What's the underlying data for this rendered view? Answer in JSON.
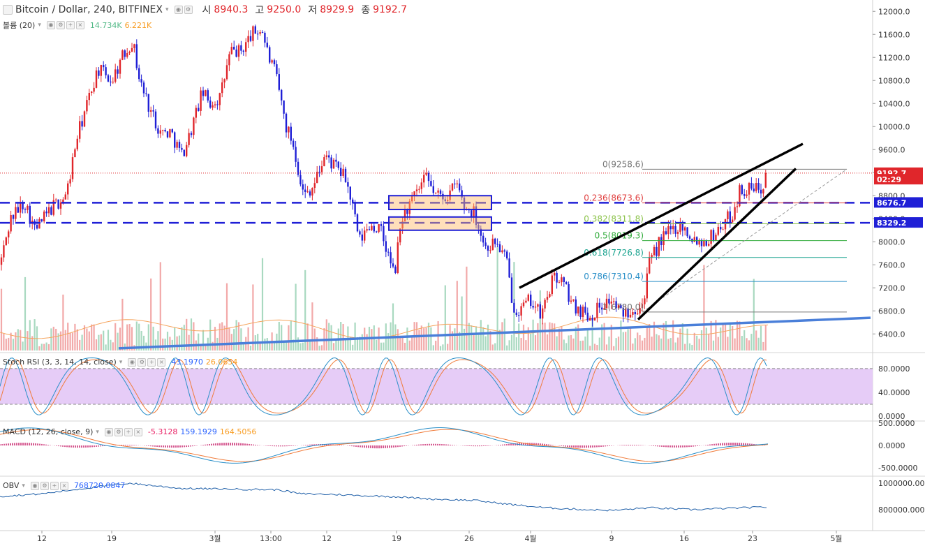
{
  "header": {
    "symbol": "Bitcoin / Dollar, 240, BITFINEX",
    "open_label": "시",
    "open_value": "8940.3",
    "high_label": "고",
    "high_value": "9250.0",
    "low_label": "저",
    "low_value": "8929.9",
    "close_label": "종",
    "close_value": "9192.7"
  },
  "volume_legend": {
    "name": "볼륨 (20)",
    "value1": "14.734K",
    "value2": "6.221K"
  },
  "stoch_legend": {
    "name": "Stoch RSI (3, 3, 14, 14, close)",
    "k": "43.1970",
    "d": "26.0654"
  },
  "macd_legend": {
    "name": "MACD (12, 26, close, 9)",
    "hist": "-5.3128",
    "macd": "159.1929",
    "signal": "164.5056"
  },
  "obv_legend": {
    "name": "OBV",
    "value": "768720.0847"
  },
  "price_axis": {
    "ticks": [
      "12000.0",
      "11600.0",
      "11200.0",
      "10800.0",
      "10400.0",
      "10000.0",
      "9600.0",
      "9200.0",
      "8800.0",
      "8400.0",
      "8000.0",
      "7600.0",
      "7200.0",
      "6800.0",
      "6400.0"
    ],
    "tick_values": [
      12000,
      11600,
      11200,
      10800,
      10400,
      10000,
      9600,
      9200,
      8800,
      8400,
      8000,
      7600,
      7200,
      6800,
      6400
    ],
    "badges": [
      {
        "text": "9192.7",
        "value": 9192.7,
        "color": "#e0262b"
      },
      {
        "text": "02:29",
        "value": 9080,
        "color": "#e0262b"
      },
      {
        "text": "8676.7",
        "value": 8676.7,
        "color": "#1f1fd6"
      },
      {
        "text": "8329.2",
        "value": 8329.2,
        "color": "#1f1fd6"
      }
    ]
  },
  "stoch_axis": {
    "ticks": [
      "80.0000",
      "40.0000",
      "0.0000"
    ],
    "values": [
      80,
      40,
      0
    ]
  },
  "macd_axis": {
    "ticks": [
      "500.0000",
      "0.0000",
      "-500.0000"
    ],
    "values": [
      500,
      0,
      -500
    ]
  },
  "obv_axis": {
    "ticks": [
      "1000000.0000",
      "800000.0000"
    ],
    "values": [
      1000000,
      800000
    ]
  },
  "time_axis": {
    "labels": [
      "12",
      "19",
      "3월",
      "13:00",
      "12",
      "19",
      "26",
      "4월",
      "9",
      "16",
      "23",
      "5월"
    ],
    "positions": [
      60,
      160,
      308,
      388,
      468,
      568,
      672,
      760,
      876,
      980,
      1078,
      1198
    ]
  },
  "fib_levels": [
    {
      "label": "0(9258.6)",
      "value": 9258.6,
      "color": "#787878"
    },
    {
      "label": "0.236(8673.6)",
      "value": 8673.6,
      "color": "#e04040"
    },
    {
      "label": "0.382(8311.8)",
      "value": 8311.8,
      "color": "#8bc34a"
    },
    {
      "label": "0.5(8019.3)",
      "value": 8019.3,
      "color": "#2eaa38"
    },
    {
      "label": "0.618(7726.8)",
      "value": 7726.8,
      "color": "#1aa38f"
    },
    {
      "label": "0.786(7310.4)",
      "value": 7310.4,
      "color": "#2a8fc8"
    },
    {
      "label": "1(6780.0)",
      "value": 6780.0,
      "color": "#787878"
    }
  ],
  "support_levels": [
    8676.7,
    8329.2
  ],
  "colors": {
    "up": "#e0262b",
    "down": "#1f1fd6",
    "volume_up": "#f2a9a9",
    "volume_down": "#a9d9c0",
    "stoch_k": "#2a8fc8",
    "stoch_d": "#f07b3a",
    "stoch_band": "#e6ccf7",
    "macd_line": "#2a8fc8",
    "signal_line": "#f07b3a",
    "hist": "#cc3377",
    "obv_line": "#1f5fa8",
    "trendline": "#4a7fd9"
  },
  "chart_data": {
    "type": "candlestick",
    "title": "Bitcoin / Dollar, 240, BITFINEX",
    "ylim": [
      6100,
      12100
    ],
    "anchors": [
      [
        0,
        7600
      ],
      [
        15,
        8400
      ],
      [
        35,
        8700
      ],
      [
        50,
        8200
      ],
      [
        75,
        8600
      ],
      [
        95,
        8800
      ],
      [
        110,
        9800
      ],
      [
        125,
        10400
      ],
      [
        140,
        11000
      ],
      [
        160,
        10800
      ],
      [
        175,
        11200
      ],
      [
        190,
        11500
      ],
      [
        200,
        10800
      ],
      [
        215,
        10300
      ],
      [
        230,
        9900
      ],
      [
        245,
        9900
      ],
      [
        260,
        9500
      ],
      [
        270,
        9800
      ],
      [
        280,
        10200
      ],
      [
        290,
        10600
      ],
      [
        300,
        10400
      ],
      [
        315,
        10500
      ],
      [
        330,
        11300
      ],
      [
        345,
        11300
      ],
      [
        360,
        11600
      ],
      [
        375,
        11700
      ],
      [
        385,
        11200
      ],
      [
        395,
        10900
      ],
      [
        410,
        10000
      ],
      [
        420,
        9700
      ],
      [
        435,
        8800
      ],
      [
        450,
        9000
      ],
      [
        465,
        9500
      ],
      [
        480,
        9300
      ],
      [
        495,
        9100
      ],
      [
        505,
        8600
      ],
      [
        515,
        8000
      ],
      [
        530,
        8300
      ],
      [
        545,
        8200
      ],
      [
        555,
        7800
      ],
      [
        565,
        7400
      ],
      [
        575,
        8400
      ],
      [
        585,
        8600
      ],
      [
        595,
        8800
      ],
      [
        610,
        9100
      ],
      [
        625,
        8800
      ],
      [
        640,
        8800
      ],
      [
        655,
        9000
      ],
      [
        665,
        8600
      ],
      [
        680,
        8500
      ],
      [
        695,
        7900
      ],
      [
        710,
        8000
      ],
      [
        725,
        7700
      ],
      [
        735,
        6900
      ],
      [
        745,
        6800
      ],
      [
        760,
        7000
      ],
      [
        775,
        6700
      ],
      [
        790,
        7300
      ],
      [
        800,
        7400
      ],
      [
        810,
        7200
      ],
      [
        820,
        6900
      ],
      [
        835,
        6800
      ],
      [
        845,
        6700
      ],
      [
        860,
        6900
      ],
      [
        875,
        7000
      ],
      [
        890,
        6750
      ],
      [
        905,
        6850
      ],
      [
        920,
        6900
      ],
      [
        930,
        7600
      ],
      [
        945,
        8000
      ],
      [
        960,
        8200
      ],
      [
        975,
        8300
      ],
      [
        990,
        8100
      ],
      [
        1005,
        8000
      ],
      [
        1020,
        8100
      ],
      [
        1035,
        8300
      ],
      [
        1050,
        8500
      ],
      [
        1060,
        8900
      ],
      [
        1075,
        8900
      ],
      [
        1090,
        8950
      ],
      [
        1100,
        9190
      ]
    ],
    "fib_range": {
      "high": 9258.6,
      "low": 6780.0
    },
    "indicators": [
      "Volume (20)",
      "Stoch RSI (3,3,14,14)",
      "MACD (12,26,9)",
      "OBV"
    ]
  }
}
